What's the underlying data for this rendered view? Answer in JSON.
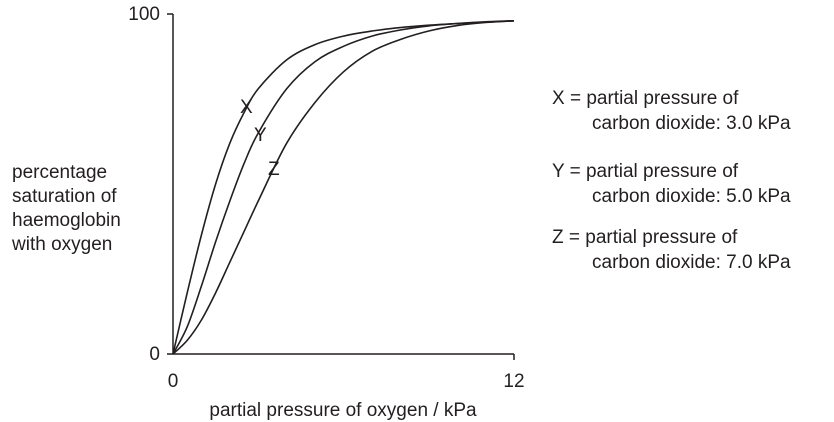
{
  "chart_data": {
    "type": "line",
    "xlabel": "partial pressure of oxygen / kPa",
    "ylabel_lines": [
      "percentage",
      "saturation of",
      "haemoglobin",
      "with oxygen"
    ],
    "xlim": [
      0,
      12
    ],
    "ylim": [
      0,
      100
    ],
    "x_ticks": [
      "0",
      "12"
    ],
    "y_ticks": [
      "0",
      "100"
    ],
    "grid": false,
    "series": [
      {
        "name": "X",
        "x": [
          0,
          0.5,
          1,
          1.5,
          2,
          2.5,
          3,
          4,
          5,
          6,
          7,
          8,
          9,
          10,
          11,
          12
        ],
        "values": [
          0,
          18,
          35,
          50,
          62,
          71,
          78,
          86.5,
          91,
          93.5,
          95,
          96,
          96.7,
          97.2,
          97.6,
          98
        ]
      },
      {
        "name": "Y",
        "x": [
          0,
          0.5,
          1,
          1.5,
          2,
          2.5,
          3,
          4,
          5,
          6,
          7,
          8,
          9,
          10,
          11,
          12
        ],
        "values": [
          0,
          8,
          20,
          33,
          45,
          56,
          65,
          78,
          86,
          90.5,
          93.5,
          95.3,
          96.5,
          97.2,
          97.7,
          98
        ]
      },
      {
        "name": "Z",
        "x": [
          0,
          0.5,
          1,
          1.5,
          2,
          2.5,
          3,
          4,
          5,
          6,
          7,
          8,
          9,
          10,
          11,
          12
        ],
        "values": [
          0,
          4,
          10,
          18,
          27,
          36,
          45,
          62,
          74,
          83,
          89,
          92.5,
          95,
          96.6,
          97.5,
          98
        ]
      }
    ],
    "legend": [
      {
        "line1": "X = partial pressure of",
        "line2": "carbon dioxide: 3.0 kPa"
      },
      {
        "line1": "Y = partial pressure of",
        "line2": "carbon dioxide: 5.0 kPa"
      },
      {
        "line1": "Z = partial pressure of",
        "line2": "carbon dioxide: 7.0 kPa"
      }
    ]
  }
}
